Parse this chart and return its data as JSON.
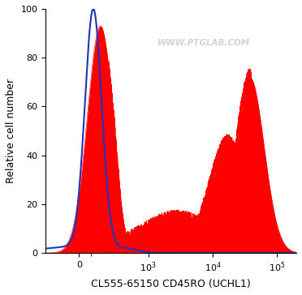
{
  "title": "",
  "xlabel": "CL555-65150 CD45RO (UCHL1)",
  "ylabel": "Relative cell number",
  "watermark": "WWW.PTGLAB.COM",
  "ylim": [
    0,
    100
  ],
  "yticks": [
    0,
    20,
    40,
    60,
    80,
    100
  ],
  "blue_color": "#2233bb",
  "red_color": "#ff0000",
  "background_color": "#ffffff",
  "linthresh": 300,
  "linscale": 0.5
}
